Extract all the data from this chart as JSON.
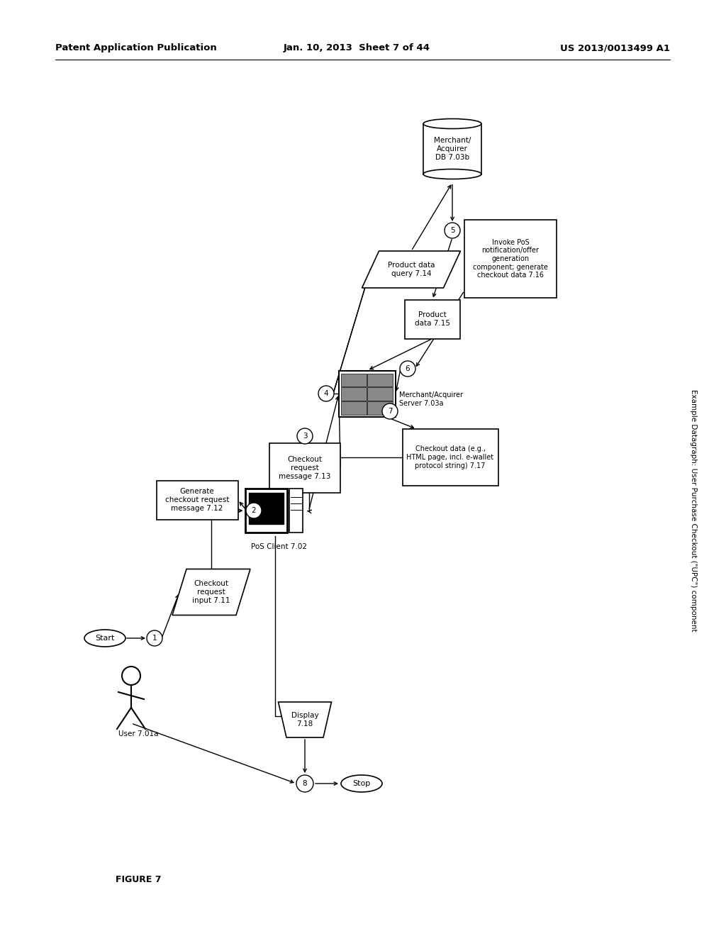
{
  "bg_color": "#ffffff",
  "header_left": "Patent Application Publication",
  "header_mid": "Jan. 10, 2013  Sheet 7 of 44",
  "header_right": "US 2013/0013499 A1",
  "figure_label": "FIGURE 7",
  "side_label": "Example Datagraph: User Purchase Checkout (\"UPC\") component"
}
